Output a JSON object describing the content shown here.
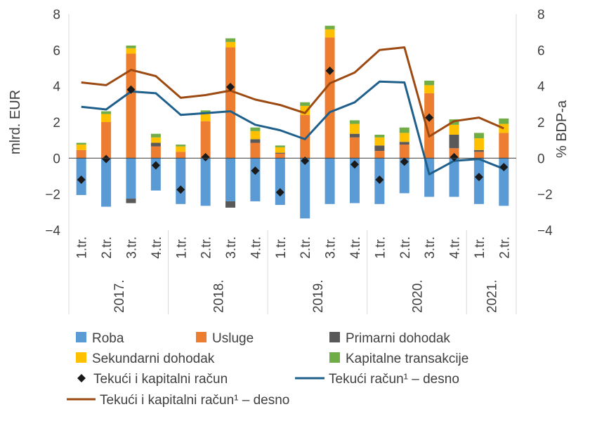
{
  "chart_data": {
    "type": "bar",
    "stacked": true,
    "ylabel_left": "mlrd. EUR",
    "ylabel_right": "% BDP-a",
    "ylim_left": [
      -4,
      8
    ],
    "ylim_right": [
      -4,
      8
    ],
    "yticks": [
      "−4",
      "−2",
      "0",
      "2",
      "4",
      "6",
      "8"
    ],
    "grid": false,
    "legend_position": "bottom",
    "quarter_labels": [
      "1.tr.",
      "2.tr.",
      "3.tr.",
      "4.tr."
    ],
    "years": [
      "2017.",
      "2018.",
      "2019.",
      "2020.",
      "2021."
    ],
    "categories": [
      "2017. 1.tr.",
      "2017. 2.tr.",
      "2017. 3.tr.",
      "2017. 4.tr.",
      "2018. 1.tr.",
      "2018. 2.tr.",
      "2018. 3.tr.",
      "2018. 4.tr.",
      "2019. 1.tr.",
      "2019. 2.tr.",
      "2019. 3.tr.",
      "2019. 4.tr.",
      "2020. 1.tr.",
      "2020. 2.tr.",
      "2020. 3.tr.",
      "2020. 4.tr.",
      "2021. 1.tr.",
      "2021. 2.tr."
    ],
    "series": [
      {
        "name": "Roba",
        "kind": "bar",
        "color": "#5b9bd5",
        "values": [
          -2.05,
          -2.7,
          -2.25,
          -1.8,
          -2.55,
          -2.65,
          -2.4,
          -2.4,
          -2.6,
          -3.35,
          -2.55,
          -2.5,
          -2.55,
          -1.95,
          -2.15,
          -2.15,
          -2.55,
          -2.65
        ]
      },
      {
        "name": "Usluge",
        "kind": "bar",
        "color": "#ed7d31",
        "values": [
          0.45,
          2.0,
          5.8,
          0.65,
          0.35,
          2.05,
          6.15,
          0.85,
          0.25,
          2.4,
          6.7,
          1.15,
          0.4,
          0.75,
          3.6,
          0.55,
          0.35,
          1.4
        ]
      },
      {
        "name": "Primarni dohodak",
        "kind": "bar",
        "color": "#595959",
        "values": [
          0.0,
          0.0,
          -0.25,
          0.2,
          0.0,
          0.0,
          -0.35,
          0.2,
          0.05,
          0.0,
          0.0,
          0.2,
          0.3,
          0.15,
          0.0,
          0.75,
          0.1,
          0.0
        ]
      },
      {
        "name": "Sekundarni dohodak",
        "kind": "bar",
        "color": "#ffc000",
        "values": [
          0.3,
          0.45,
          0.3,
          0.3,
          0.3,
          0.45,
          0.3,
          0.45,
          0.3,
          0.5,
          0.45,
          0.55,
          0.45,
          0.5,
          0.45,
          0.55,
          0.65,
          0.5
        ]
      },
      {
        "name": "Kapitalne transakcije",
        "kind": "bar",
        "color": "#70ad47",
        "values": [
          0.1,
          0.15,
          0.15,
          0.2,
          0.1,
          0.15,
          0.2,
          0.2,
          0.1,
          0.2,
          0.2,
          0.2,
          0.15,
          0.3,
          0.25,
          0.3,
          0.3,
          0.3
        ]
      },
      {
        "name": "Tekući i kapitalni račun",
        "kind": "marker",
        "color": "#1a1a1a",
        "values": [
          -1.2,
          -0.05,
          3.8,
          -0.4,
          -1.75,
          0.05,
          3.95,
          -0.7,
          -1.9,
          -0.15,
          4.85,
          -0.35,
          -1.2,
          -0.2,
          2.25,
          0.05,
          -1.05,
          -0.5
        ]
      },
      {
        "name": "Tekući račun¹ – desno",
        "kind": "line",
        "axis": "right",
        "color": "#1f5f8b",
        "values": [
          2.85,
          2.7,
          3.7,
          3.6,
          2.4,
          2.5,
          2.6,
          1.85,
          1.55,
          1.05,
          2.55,
          3.1,
          4.25,
          4.2,
          -0.9,
          -0.15,
          -0.05,
          -0.6
        ]
      },
      {
        "name": "Tekući i kapitalni račun¹ – desno",
        "kind": "line",
        "axis": "right",
        "color": "#9c4a12",
        "values": [
          4.2,
          4.05,
          4.9,
          4.55,
          3.35,
          3.5,
          3.75,
          3.25,
          2.95,
          2.5,
          4.15,
          4.75,
          6.0,
          6.15,
          1.2,
          2.05,
          2.25,
          1.65
        ]
      }
    ]
  }
}
